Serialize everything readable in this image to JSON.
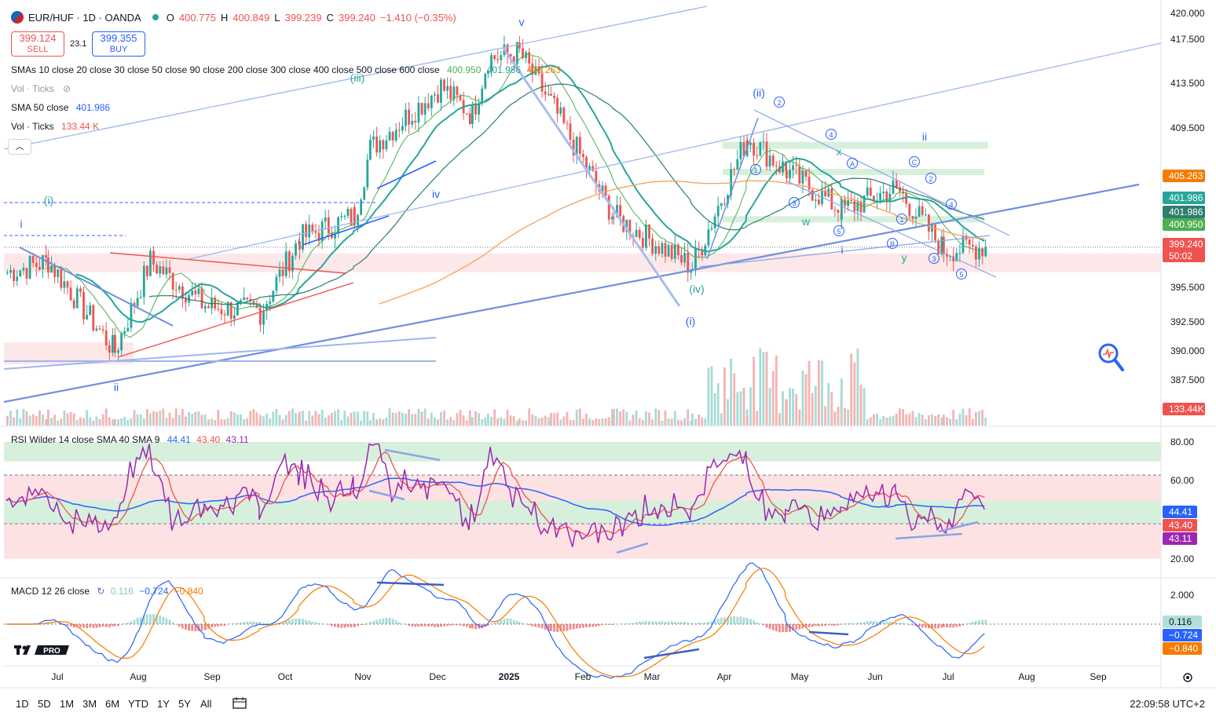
{
  "header": {
    "symbol": "EUR/HUF · 1D · OANDA",
    "open_label": "O",
    "open": "400.775",
    "high_label": "H",
    "high": "400.849",
    "low_label": "L",
    "low": "399.239",
    "close_label": "C",
    "close": "399.240",
    "change": "−1.410 (−0.35%)"
  },
  "trade": {
    "sell_price": "399.124",
    "sell_label": "SELL",
    "spread": "23.1",
    "buy_price": "399.355",
    "buy_label": "BUY"
  },
  "indicators": {
    "smas_label": "SMAs 10 close 20 close 30 close 50 close 90 close 200 close 300 close 400 close 500 close 600 close",
    "smas_v1": "400.950",
    "smas_v2": "401.986",
    "smas_v3": "405.263",
    "vol_hidden_label": "Vol · Ticks",
    "sma50_label": "SMA 50 close",
    "sma50_value": "401.986",
    "vol_label": "Vol · Ticks",
    "vol_value": "133.44 K",
    "rsi_label": "RSI Wilder 14 close SMA 40 SMA 9",
    "rsi_v1": "44.41",
    "rsi_v2": "43.40",
    "rsi_v3": "43.11",
    "macd_label": "MACD 12 26 close",
    "macd_v1": "0.116",
    "macd_v2": "−0.724",
    "macd_v3": "−0.840"
  },
  "price_axis": [
    "420.000",
    "417.500",
    "413.500",
    "409.500",
    "395.500",
    "392.500",
    "390.000",
    "387.500"
  ],
  "price_badges": [
    {
      "text": "405.263",
      "color": "#f57c00"
    },
    {
      "text": "401.986",
      "color": "#26a69a"
    },
    {
      "text": "401.986",
      "color": "#2e7d6e"
    },
    {
      "text": "400.950",
      "color": "#4caf50"
    },
    {
      "text": "399.240",
      "color": "#ef5350"
    },
    {
      "text": "50:02",
      "color": "#ef5350"
    },
    {
      "text": "133.44K",
      "color": "#ef5350"
    }
  ],
  "rsi_axis": [
    "80.00",
    "60.00",
    "20.00"
  ],
  "rsi_badges": [
    {
      "text": "44.41",
      "color": "#2962ff"
    },
    {
      "text": "43.40",
      "color": "#ef5350"
    },
    {
      "text": "43.11",
      "color": "#9c27b0"
    }
  ],
  "macd_axis": [
    "2.000"
  ],
  "macd_badges": [
    {
      "text": "0.116",
      "color": "#b2dfdb",
      "fg": "#131722"
    },
    {
      "text": "−0.724",
      "color": "#2962ff",
      "fg": "#ffffff"
    },
    {
      "text": "−0.840",
      "color": "#f57c00",
      "fg": "#ffffff"
    }
  ],
  "time_axis": [
    "Jul",
    "Aug",
    "Sep",
    "Oct",
    "Nov",
    "Dec",
    "2025",
    "Feb",
    "Mar",
    "Apr",
    "May",
    "Jun",
    "Jul",
    "Aug",
    "Sep"
  ],
  "wave_labels": [
    "i",
    "(i)",
    "ii",
    "(iii)",
    "iv",
    "v",
    "(ii)",
    "(iv)",
    "(i)",
    "x",
    "w",
    "ii",
    "y",
    "i",
    "A",
    "B",
    "C",
    "1",
    "2",
    "3",
    "4",
    "5",
    "1",
    "2",
    "3",
    "4",
    "5"
  ],
  "timeframes": [
    "1D",
    "5D",
    "1M",
    "3M",
    "6M",
    "YTD",
    "1Y",
    "5Y",
    "All"
  ],
  "clock": "22:09:58 UTC+2",
  "logo_text": "PRO",
  "colors": {
    "up": "#26a69a",
    "down": "#ef5350",
    "accent": "#2962ff",
    "trendline": "#6f8fe0"
  }
}
